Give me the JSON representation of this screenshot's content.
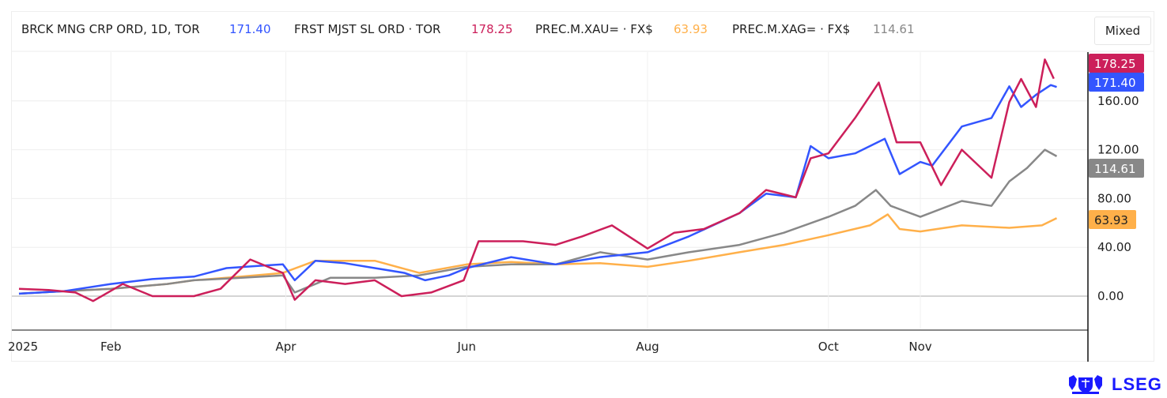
{
  "header": {
    "legend": [
      {
        "name": "BRCK MNG CRP ORD, 1D, TOR",
        "value": "171.40",
        "color": "#3355ff"
      },
      {
        "name": "FRST MJST SL ORD · TOR",
        "value": "178.25",
        "color": "#cc1f5a"
      },
      {
        "name": "PREC.M.XAU= · FX$",
        "value": "63.93",
        "color": "#ffb04a"
      },
      {
        "name": "PREC.M.XAG= · FX$",
        "value": "114.61",
        "color": "#888888"
      }
    ],
    "scale_mode": "Mixed"
  },
  "logo": {
    "text": "LSEG",
    "color": "#1a1aff"
  },
  "chart_data": {
    "type": "line",
    "title": "",
    "xlabel": "",
    "ylabel": "",
    "x_unit": "day of year 2025",
    "xlim": [
      0,
      354
    ],
    "ylim": [
      -28,
      200
    ],
    "grid": true,
    "legend_placement": "top-left",
    "x_ticks": [
      {
        "day": 0,
        "label": "2025"
      },
      {
        "day": 31,
        "label": "Feb"
      },
      {
        "day": 90,
        "label": "Apr"
      },
      {
        "day": 151,
        "label": "Jun"
      },
      {
        "day": 212,
        "label": "Aug"
      },
      {
        "day": 273,
        "label": "Oct"
      },
      {
        "day": 304,
        "label": "Nov"
      }
    ],
    "y_ticks": [
      {
        "value": 0,
        "label": "0.00"
      },
      {
        "value": 40,
        "label": "40.00"
      },
      {
        "value": 80,
        "label": "80.00"
      },
      {
        "value": 120,
        "label": "120.00"
      },
      {
        "value": 160,
        "label": "160.00"
      }
    ],
    "series": [
      {
        "name": "BRCK MNG CRP ORD",
        "color": "#3355ff",
        "last_label": "171.40",
        "label_text_color": "#ffffff",
        "points": [
          [
            0,
            2
          ],
          [
            15,
            4
          ],
          [
            31,
            10
          ],
          [
            45,
            14
          ],
          [
            59,
            16
          ],
          [
            70,
            23
          ],
          [
            82,
            25
          ],
          [
            89,
            26
          ],
          [
            93,
            13
          ],
          [
            100,
            29
          ],
          [
            110,
            27
          ],
          [
            120,
            23
          ],
          [
            130,
            19
          ],
          [
            137,
            13
          ],
          [
            145,
            17
          ],
          [
            151,
            23
          ],
          [
            166,
            32
          ],
          [
            181,
            26
          ],
          [
            196,
            32
          ],
          [
            212,
            36
          ],
          [
            226,
            49
          ],
          [
            243,
            68
          ],
          [
            252,
            84
          ],
          [
            262,
            81
          ],
          [
            267,
            123
          ],
          [
            273,
            113
          ],
          [
            282,
            117
          ],
          [
            292,
            129
          ],
          [
            297,
            100
          ],
          [
            304,
            110
          ],
          [
            308,
            107
          ],
          [
            318,
            139
          ],
          [
            328,
            146
          ],
          [
            334,
            172
          ],
          [
            338,
            155
          ],
          [
            343,
            165
          ],
          [
            348,
            173
          ],
          [
            350,
            171.4
          ]
        ]
      },
      {
        "name": "FRST MJST SL ORD",
        "color": "#cc1f5a",
        "last_label": "178.25",
        "label_text_color": "#ffffff",
        "points": [
          [
            0,
            6
          ],
          [
            10,
            5
          ],
          [
            19,
            3
          ],
          [
            25,
            -4
          ],
          [
            35,
            10
          ],
          [
            45,
            0
          ],
          [
            59,
            0
          ],
          [
            68,
            6
          ],
          [
            78,
            30
          ],
          [
            89,
            19
          ],
          [
            93,
            -3
          ],
          [
            100,
            13
          ],
          [
            110,
            10
          ],
          [
            120,
            13
          ],
          [
            129,
            0
          ],
          [
            139,
            3
          ],
          [
            150,
            13
          ],
          [
            155,
            45
          ],
          [
            170,
            45
          ],
          [
            181,
            42
          ],
          [
            190,
            49
          ],
          [
            200,
            58
          ],
          [
            212,
            39
          ],
          [
            221,
            52
          ],
          [
            231,
            55
          ],
          [
            243,
            68
          ],
          [
            252,
            87
          ],
          [
            262,
            81
          ],
          [
            267,
            113
          ],
          [
            273,
            117
          ],
          [
            282,
            146
          ],
          [
            290,
            175
          ],
          [
            296,
            126
          ],
          [
            304,
            126
          ],
          [
            311,
            91
          ],
          [
            318,
            120
          ],
          [
            328,
            97
          ],
          [
            334,
            159
          ],
          [
            338,
            178
          ],
          [
            343,
            155
          ],
          [
            346,
            194
          ],
          [
            349,
            178.25
          ]
        ]
      },
      {
        "name": "PREC.M.XAU=",
        "color": "#ffb04a",
        "last_label": "63.93",
        "label_text_color": "#222222",
        "points": [
          [
            0,
            2
          ],
          [
            15,
            4
          ],
          [
            31,
            6
          ],
          [
            50,
            10
          ],
          [
            59,
            13
          ],
          [
            75,
            16
          ],
          [
            89,
            19
          ],
          [
            100,
            29
          ],
          [
            120,
            29
          ],
          [
            135,
            19
          ],
          [
            151,
            26
          ],
          [
            166,
            28
          ],
          [
            181,
            26
          ],
          [
            196,
            27
          ],
          [
            212,
            24
          ],
          [
            226,
            29
          ],
          [
            243,
            36
          ],
          [
            258,
            42
          ],
          [
            273,
            50
          ],
          [
            287,
            58
          ],
          [
            293,
            67
          ],
          [
            297,
            55
          ],
          [
            304,
            53
          ],
          [
            318,
            58
          ],
          [
            334,
            56
          ],
          [
            345,
            58
          ],
          [
            350,
            63.93
          ]
        ]
      },
      {
        "name": "PREC.M.XAG=",
        "color": "#888888",
        "last_label": "114.61",
        "label_text_color": "#ffffff",
        "points": [
          [
            0,
            2
          ],
          [
            15,
            4
          ],
          [
            31,
            6
          ],
          [
            50,
            10
          ],
          [
            59,
            13
          ],
          [
            75,
            15
          ],
          [
            89,
            17
          ],
          [
            93,
            3
          ],
          [
            105,
            15
          ],
          [
            120,
            15
          ],
          [
            135,
            17
          ],
          [
            151,
            24
          ],
          [
            166,
            26
          ],
          [
            181,
            26
          ],
          [
            196,
            36
          ],
          [
            212,
            30
          ],
          [
            226,
            36
          ],
          [
            243,
            42
          ],
          [
            258,
            52
          ],
          [
            273,
            65
          ],
          [
            282,
            74
          ],
          [
            289,
            87
          ],
          [
            294,
            74
          ],
          [
            304,
            65
          ],
          [
            318,
            78
          ],
          [
            328,
            74
          ],
          [
            334,
            94
          ],
          [
            340,
            105
          ],
          [
            346,
            120
          ],
          [
            350,
            114.61
          ]
        ]
      }
    ]
  }
}
